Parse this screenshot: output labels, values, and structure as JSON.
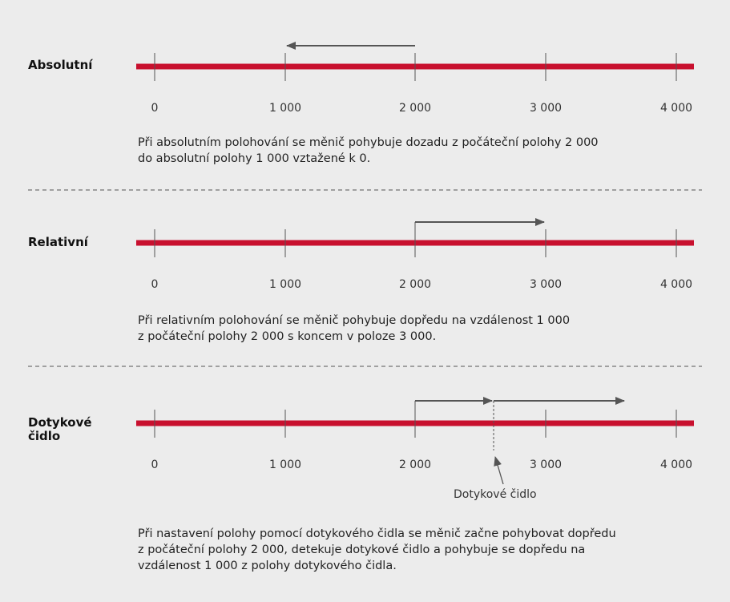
{
  "colors": {
    "background": "#ececec",
    "axis_bar": "#c8102e",
    "arrow": "#555555",
    "separator": "#555555"
  },
  "ticks": [
    "0",
    "1 000",
    "2 000",
    "3 000",
    "4 000"
  ],
  "sections": [
    {
      "label": [
        "Absolutní"
      ],
      "moves": [
        {
          "from": 2000,
          "to": 1000
        }
      ],
      "description": [
        "Při absolutním polohování se měnič pohybuje dozadu z počáteční polohy 2 000",
        "do absolutní polohy 1 000 vztažené k 0."
      ]
    },
    {
      "label": [
        "Relativní"
      ],
      "moves": [
        {
          "from": 2000,
          "to": 3000
        }
      ],
      "description": [
        "Při relativním polohování se měnič pohybuje dopředu na vzdálenost 1 000",
        "z počáteční polohy 2 000 s koncem v poloze 3 000."
      ]
    },
    {
      "label": [
        "Dotykové",
        "čidlo"
      ],
      "moves": [
        {
          "from": 2000,
          "to": 2600
        },
        {
          "from": 2600,
          "to": 3600
        }
      ],
      "sensor_position": 2600,
      "sensor_label": "Dotykové čidlo",
      "description": [
        "Při nastavení polohy pomocí dotykového čidla se měnič začne pohybovat dopředu",
        "z počáteční polohy 2 000, detekuje dotykové čidlo a pohybuje se dopředu na",
        "vzdálenost 1 000 z polohy dotykového čidla."
      ]
    }
  ]
}
